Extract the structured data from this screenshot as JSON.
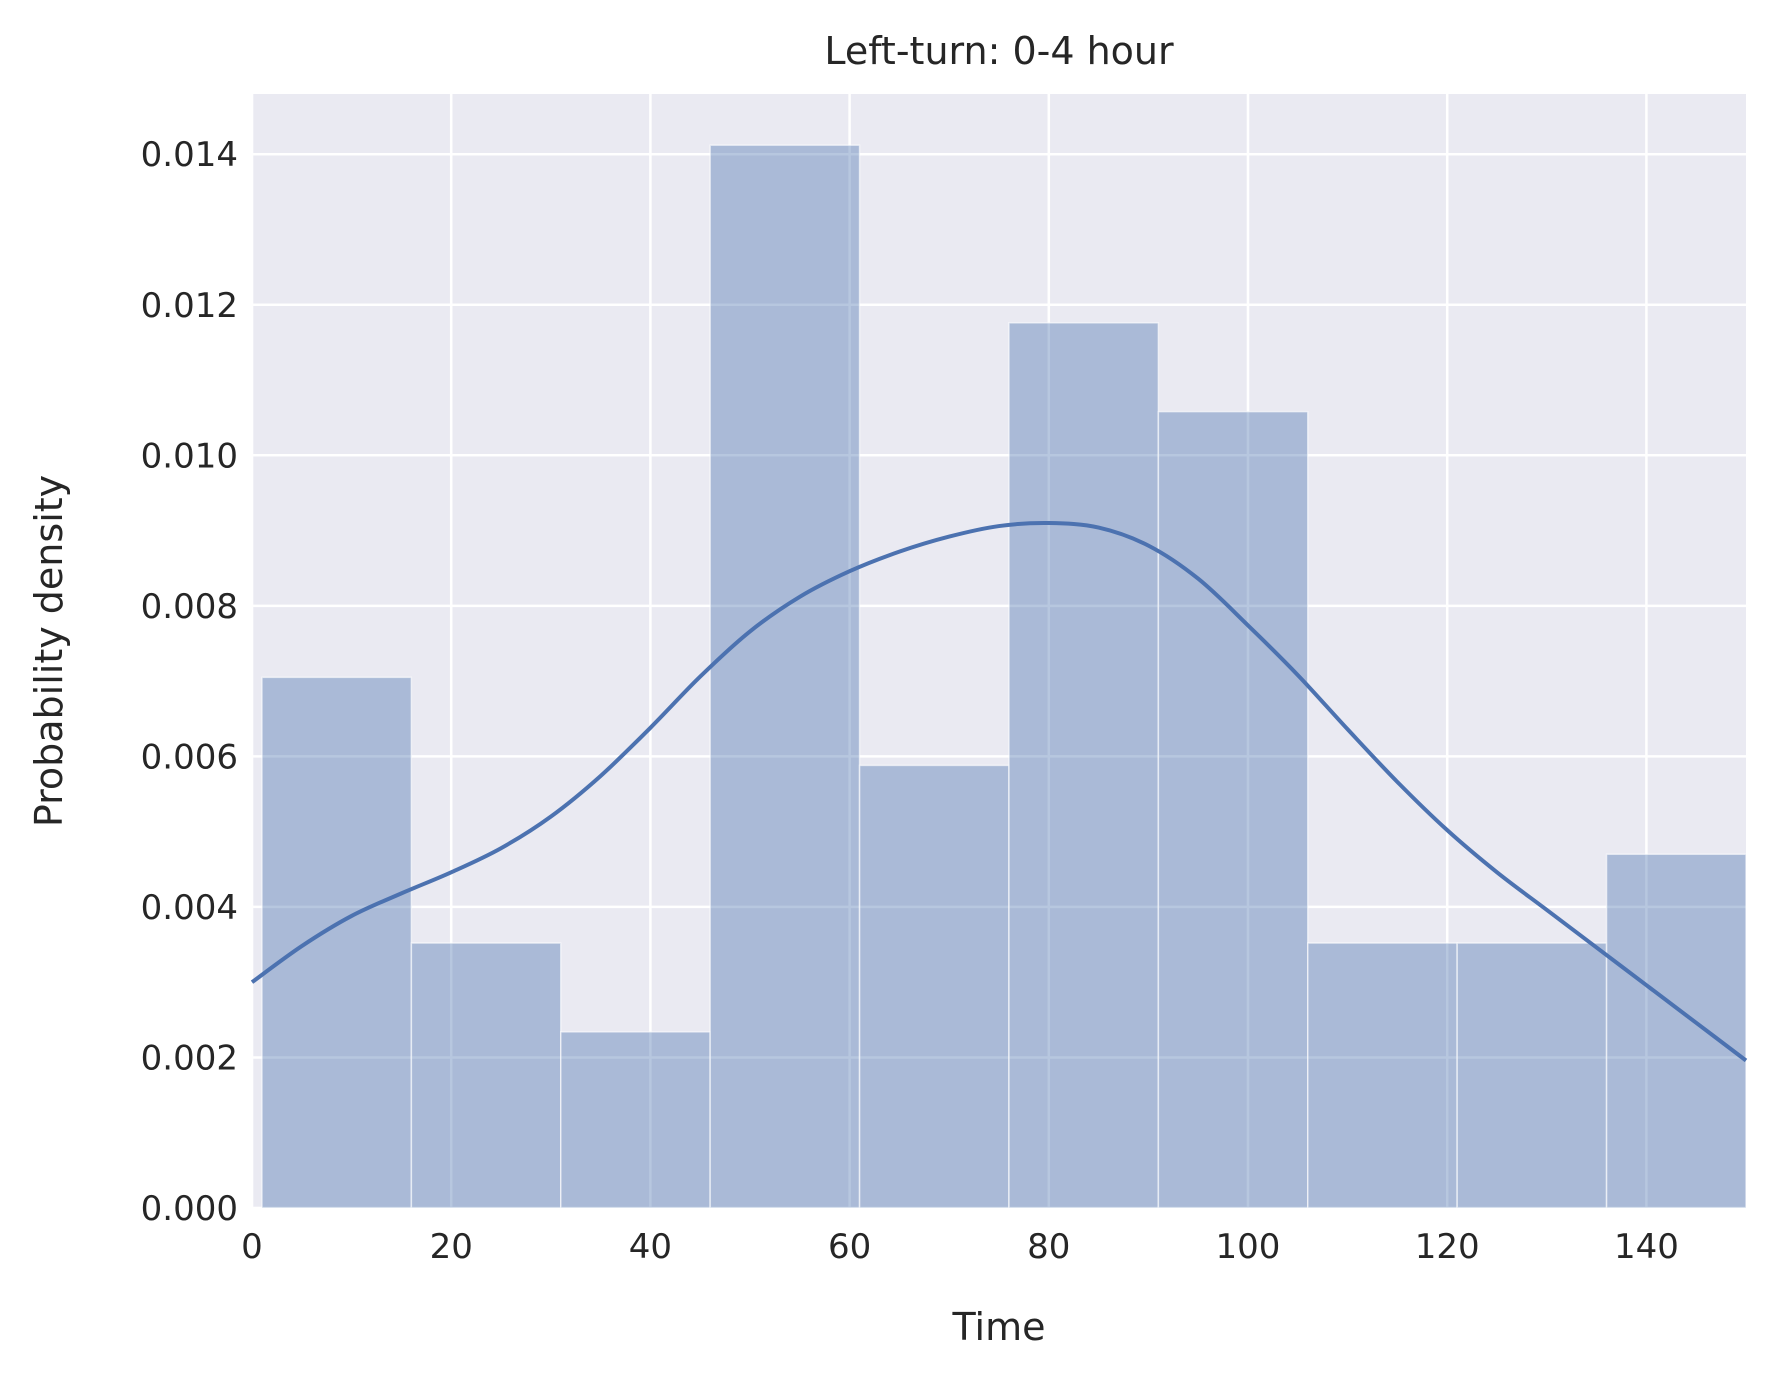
{
  "chart_data": {
    "type": "bar",
    "title": "Left-turn: 0-4 hour",
    "xlabel": "Time",
    "ylabel": "Probability density",
    "xlim": [
      0,
      150
    ],
    "ylim": [
      0,
      0.0148
    ],
    "grid": true,
    "xticks": [
      0,
      20,
      40,
      60,
      80,
      100,
      120,
      140
    ],
    "xtick_labels": [
      "0",
      "20",
      "40",
      "60",
      "80",
      "100",
      "120",
      "140"
    ],
    "yticks": [
      0,
      0.002,
      0.004,
      0.006,
      0.008,
      0.01,
      0.012,
      0.014
    ],
    "ytick_labels": [
      "0.000",
      "0.002",
      "0.004",
      "0.006",
      "0.008",
      "0.010",
      "0.012",
      "0.014"
    ],
    "histogram": {
      "bin_edges": [
        1,
        16,
        31,
        46,
        61,
        76,
        91,
        106,
        121,
        136,
        151
      ],
      "density": [
        0.00705,
        0.00352,
        0.00234,
        0.01412,
        0.00588,
        0.01176,
        0.01058,
        0.00352,
        0.00352,
        0.0047
      ]
    },
    "kde_curve": {
      "x": [
        0,
        5,
        10,
        15,
        20,
        25,
        30,
        35,
        40,
        45,
        50,
        55,
        60,
        65,
        70,
        75,
        80,
        85,
        90,
        95,
        100,
        105,
        110,
        115,
        120,
        125,
        130,
        135,
        140,
        145,
        150
      ],
      "y": [
        0.003,
        0.00348,
        0.00388,
        0.00418,
        0.00446,
        0.00478,
        0.0052,
        0.00574,
        0.00638,
        0.00706,
        0.00766,
        0.00812,
        0.00846,
        0.00872,
        0.00892,
        0.00906,
        0.0091,
        0.00904,
        0.0088,
        0.00836,
        0.00774,
        0.00708,
        0.00636,
        0.00566,
        0.00502,
        0.00446,
        0.00396,
        0.00346,
        0.00296,
        0.00246,
        0.00196
      ]
    },
    "colors": {
      "bar": "#4c72b0",
      "line": "#4c72b0",
      "plot_background": "#eaeaf2",
      "grid": "#ffffff"
    }
  }
}
